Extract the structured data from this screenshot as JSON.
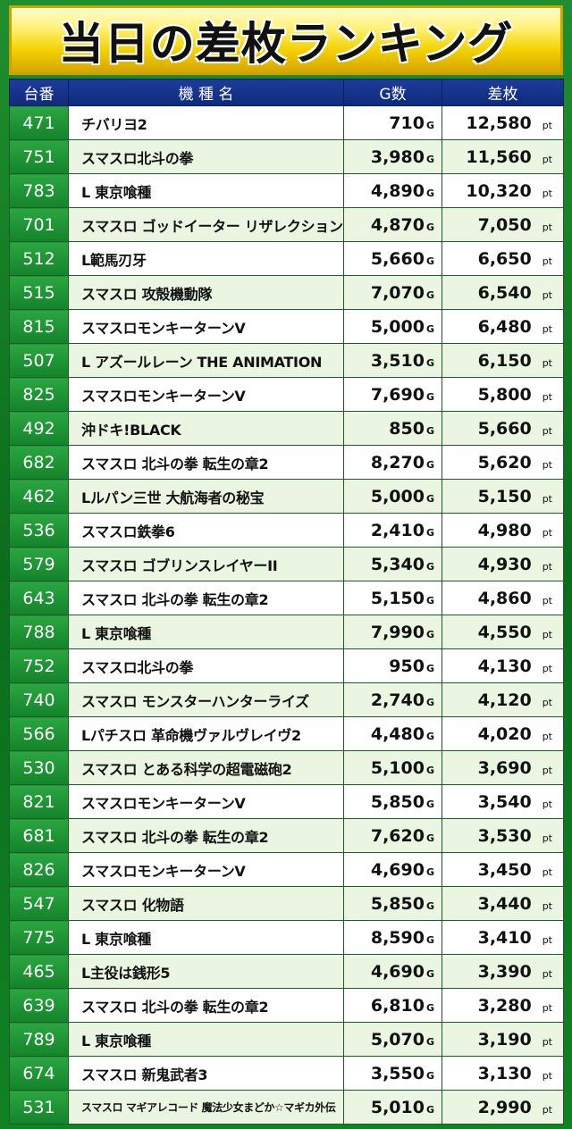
{
  "title": "当日の差枚ランキング",
  "headers": {
    "no": "台番",
    "name": "機 種 名",
    "games": "G数",
    "diff": "差枚"
  },
  "units": {
    "games": "G",
    "diff": "pt"
  },
  "colors": {
    "header_bg": "#12307f",
    "number_bg": "#1a902f",
    "title_bg": "#f3d200"
  },
  "rows": [
    {
      "no": "471",
      "name": "チバリヨ2",
      "games": "710",
      "diff": "12,580"
    },
    {
      "no": "751",
      "name": "スマスロ北斗の拳",
      "games": "3,980",
      "diff": "11,560"
    },
    {
      "no": "783",
      "name": "L 東京喰種",
      "games": "4,890",
      "diff": "10,320"
    },
    {
      "no": "701",
      "name": "スマスロ ゴッドイーター リザレクション",
      "games": "4,870",
      "diff": "7,050"
    },
    {
      "no": "512",
      "name": "L範馬刃牙",
      "games": "5,660",
      "diff": "6,650"
    },
    {
      "no": "515",
      "name": "スマスロ 攻殻機動隊",
      "games": "7,070",
      "diff": "6,540"
    },
    {
      "no": "815",
      "name": "スマスロモンキーターンV",
      "games": "5,000",
      "diff": "6,480"
    },
    {
      "no": "507",
      "name": "L アズールレーン THE ANIMATION",
      "games": "3,510",
      "diff": "6,150"
    },
    {
      "no": "825",
      "name": "スマスロモンキーターンV",
      "games": "7,690",
      "diff": "5,800"
    },
    {
      "no": "492",
      "name": "沖ドキ!BLACK",
      "games": "850",
      "diff": "5,660"
    },
    {
      "no": "682",
      "name": "スマスロ 北斗の拳 転生の章2",
      "games": "8,270",
      "diff": "5,620"
    },
    {
      "no": "462",
      "name": "Lルパン三世 大航海者の秘宝",
      "games": "5,000",
      "diff": "5,150"
    },
    {
      "no": "536",
      "name": "スマスロ鉄拳6",
      "games": "2,410",
      "diff": "4,980"
    },
    {
      "no": "579",
      "name": "スマスロ ゴブリンスレイヤーII",
      "games": "5,340",
      "diff": "4,930"
    },
    {
      "no": "643",
      "name": "スマスロ 北斗の拳 転生の章2",
      "games": "5,150",
      "diff": "4,860"
    },
    {
      "no": "788",
      "name": "L 東京喰種",
      "games": "7,990",
      "diff": "4,550"
    },
    {
      "no": "752",
      "name": "スマスロ北斗の拳",
      "games": "950",
      "diff": "4,130"
    },
    {
      "no": "740",
      "name": "スマスロ モンスターハンターライズ",
      "games": "2,740",
      "diff": "4,120"
    },
    {
      "no": "566",
      "name": "Lパチスロ 革命機ヴァルヴレイヴ2",
      "games": "4,480",
      "diff": "4,020"
    },
    {
      "no": "530",
      "name": "スマスロ とある科学の超電磁砲2",
      "games": "5,100",
      "diff": "3,690"
    },
    {
      "no": "821",
      "name": "スマスロモンキーターンV",
      "games": "5,850",
      "diff": "3,540"
    },
    {
      "no": "681",
      "name": "スマスロ 北斗の拳 転生の章2",
      "games": "7,620",
      "diff": "3,530"
    },
    {
      "no": "826",
      "name": "スマスロモンキーターンV",
      "games": "4,690",
      "diff": "3,450"
    },
    {
      "no": "547",
      "name": "スマスロ 化物語",
      "games": "5,850",
      "diff": "3,440"
    },
    {
      "no": "775",
      "name": "L 東京喰種",
      "games": "8,590",
      "diff": "3,410"
    },
    {
      "no": "465",
      "name": "L主役は銭形5",
      "games": "4,690",
      "diff": "3,390"
    },
    {
      "no": "639",
      "name": "スマスロ 北斗の拳 転生の章2",
      "games": "6,810",
      "diff": "3,280"
    },
    {
      "no": "789",
      "name": "L 東京喰種",
      "games": "5,070",
      "diff": "3,190"
    },
    {
      "no": "674",
      "name": "スマスロ 新鬼武者3",
      "games": "3,550",
      "diff": "3,130"
    },
    {
      "no": "531",
      "name": "スマスロ マギアレコード 魔法少女まどか☆マギカ外伝",
      "games": "5,010",
      "diff": "2,990"
    }
  ]
}
